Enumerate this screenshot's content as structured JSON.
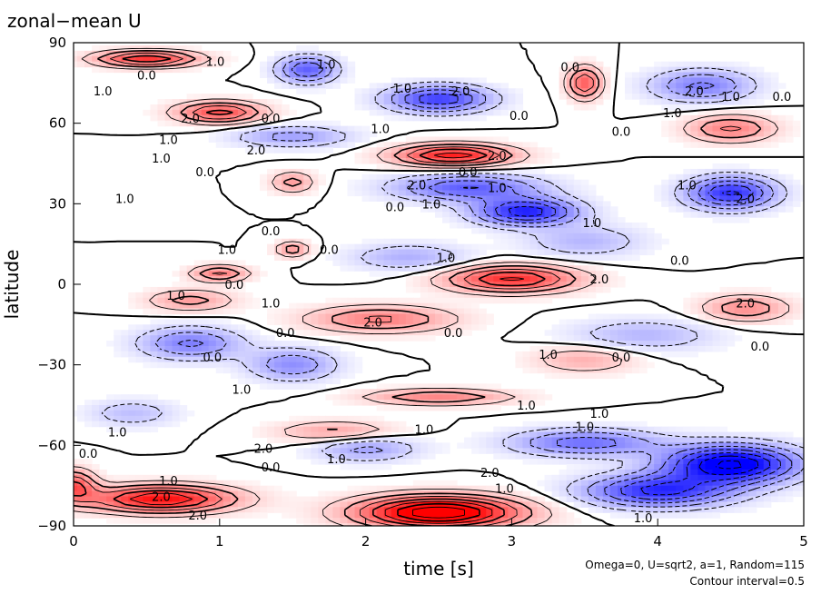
{
  "chart_data": {
    "type": "heatmap",
    "title": "zonal−mean U",
    "xlabel": "time [s]",
    "ylabel": "latitude",
    "xlim": [
      0,
      5
    ],
    "ylim": [
      -90,
      90
    ],
    "x_ticks": [
      "0",
      "1",
      "2",
      "3",
      "4",
      "5"
    ],
    "y_ticks": [
      "90",
      "60",
      "30",
      "0",
      "−30",
      "−60",
      "−90"
    ],
    "x_tick_values": [
      0,
      1,
      2,
      3,
      4,
      5
    ],
    "y_tick_values": [
      90,
      60,
      30,
      0,
      -30,
      -60,
      -90
    ],
    "annotations": [
      "Omega=0, U=sqrt2, a=1, Random=115",
      "Contour interval=0.5"
    ],
    "contour_interval": 0.5,
    "colors": {
      "positive": "#ff0000",
      "negative": "#0000ff",
      "zero": "#ffffff"
    },
    "contour_labels": [
      {
        "t": 0.97,
        "lat": 83,
        "text": "1.0"
      },
      {
        "t": 0.5,
        "lat": 78,
        "text": "0.0"
      },
      {
        "t": 0.2,
        "lat": 72,
        "text": "1.0"
      },
      {
        "t": 1.73,
        "lat": 82,
        "text": "1.0"
      },
      {
        "t": 2.25,
        "lat": 73,
        "text": "1.0"
      },
      {
        "t": 2.65,
        "lat": 72,
        "text": "2.0"
      },
      {
        "t": 3.4,
        "lat": 81,
        "text": "0.0"
      },
      {
        "t": 4.25,
        "lat": 72,
        "text": "2.0"
      },
      {
        "t": 4.5,
        "lat": 70,
        "text": "1.0"
      },
      {
        "t": 4.85,
        "lat": 70,
        "text": "0.0"
      },
      {
        "t": 0.8,
        "lat": 62,
        "text": "2.0"
      },
      {
        "t": 1.35,
        "lat": 62,
        "text": "0.0"
      },
      {
        "t": 2.1,
        "lat": 58,
        "text": "1.0"
      },
      {
        "t": 3.05,
        "lat": 63,
        "text": "0.0"
      },
      {
        "t": 4.1,
        "lat": 64,
        "text": "1.0"
      },
      {
        "t": 3.75,
        "lat": 57,
        "text": "0.0"
      },
      {
        "t": 0.65,
        "lat": 54,
        "text": "1.0"
      },
      {
        "t": 1.25,
        "lat": 50,
        "text": "2.0"
      },
      {
        "t": 0.6,
        "lat": 47,
        "text": "1.0"
      },
      {
        "t": 0.9,
        "lat": 42,
        "text": "0.0"
      },
      {
        "t": 2.9,
        "lat": 48,
        "text": "2.0"
      },
      {
        "t": 2.7,
        "lat": 42,
        "text": "0.0"
      },
      {
        "t": 2.35,
        "lat": 37,
        "text": "2.0"
      },
      {
        "t": 2.9,
        "lat": 36,
        "text": "1.0"
      },
      {
        "t": 2.2,
        "lat": 29,
        "text": "0.0"
      },
      {
        "t": 2.45,
        "lat": 30,
        "text": "1.0"
      },
      {
        "t": 0.35,
        "lat": 32,
        "text": "1.0"
      },
      {
        "t": 4.2,
        "lat": 37,
        "text": "1.0"
      },
      {
        "t": 4.6,
        "lat": 32,
        "text": "2.0"
      },
      {
        "t": 1.35,
        "lat": 20,
        "text": "0.0"
      },
      {
        "t": 3.55,
        "lat": 23,
        "text": "1.0"
      },
      {
        "t": 1.05,
        "lat": 13,
        "text": "1.0"
      },
      {
        "t": 1.75,
        "lat": 13,
        "text": "0.0"
      },
      {
        "t": 2.55,
        "lat": 10,
        "text": "1.0"
      },
      {
        "t": 4.15,
        "lat": 9,
        "text": "0.0"
      },
      {
        "t": 1.1,
        "lat": 0,
        "text": "0.0"
      },
      {
        "t": 0.7,
        "lat": -4,
        "text": "1.0"
      },
      {
        "t": 1.35,
        "lat": -7,
        "text": "1.0"
      },
      {
        "t": 3.6,
        "lat": 2,
        "text": "2.0"
      },
      {
        "t": 4.6,
        "lat": -7,
        "text": "2.0"
      },
      {
        "t": 2.05,
        "lat": -14,
        "text": "2.0"
      },
      {
        "t": 1.45,
        "lat": -18,
        "text": "0.0"
      },
      {
        "t": 2.6,
        "lat": -18,
        "text": "0.0"
      },
      {
        "t": 4.7,
        "lat": -23,
        "text": "0.0"
      },
      {
        "t": 0.95,
        "lat": -27,
        "text": "0.0"
      },
      {
        "t": 3.25,
        "lat": -26,
        "text": "1.0"
      },
      {
        "t": 3.75,
        "lat": -27,
        "text": "0.0"
      },
      {
        "t": 1.15,
        "lat": -39,
        "text": "1.0"
      },
      {
        "t": 3.1,
        "lat": -45,
        "text": "1.0"
      },
      {
        "t": 0.3,
        "lat": -55,
        "text": "1.0"
      },
      {
        "t": 2.4,
        "lat": -54,
        "text": "1.0"
      },
      {
        "t": 3.6,
        "lat": -48,
        "text": "1.0"
      },
      {
        "t": 3.5,
        "lat": -53,
        "text": "1.0"
      },
      {
        "t": 0.1,
        "lat": -63,
        "text": "0.0"
      },
      {
        "t": 1.3,
        "lat": -61,
        "text": "2.0"
      },
      {
        "t": 1.35,
        "lat": -68,
        "text": "0.0"
      },
      {
        "t": 1.8,
        "lat": -65,
        "text": "1.0"
      },
      {
        "t": 0.65,
        "lat": -73,
        "text": "1.0"
      },
      {
        "t": 0.6,
        "lat": -79,
        "text": "2.0"
      },
      {
        "t": 2.85,
        "lat": -70,
        "text": "2.0"
      },
      {
        "t": 2.95,
        "lat": -76,
        "text": "1.0"
      },
      {
        "t": 0.85,
        "lat": -86,
        "text": "2.0"
      },
      {
        "t": 3.9,
        "lat": -87,
        "text": "1.0"
      }
    ]
  }
}
